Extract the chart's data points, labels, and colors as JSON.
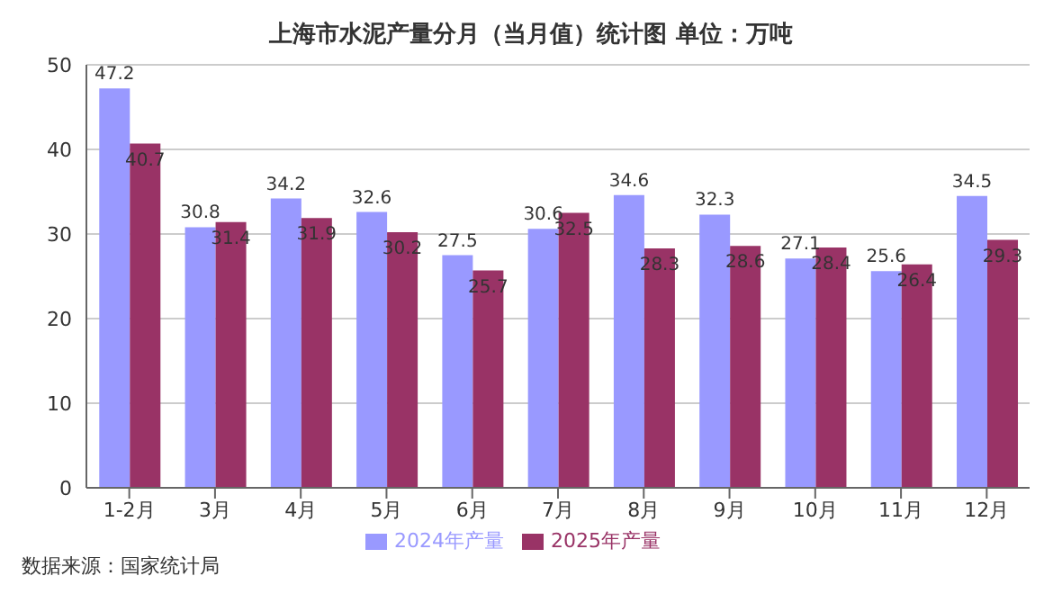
{
  "chart_data": {
    "type": "bar",
    "title": "上海市水泥产量分月（当月值）统计图 单位：万吨",
    "categories": [
      "1-2月",
      "3月",
      "4月",
      "5月",
      "6月",
      "7月",
      "8月",
      "9月",
      "10月",
      "11月",
      "12月"
    ],
    "series": [
      {
        "name": "2024年产量",
        "color": "#9999ff",
        "values": [
          47.2,
          30.8,
          34.2,
          32.6,
          27.5,
          30.6,
          34.6,
          32.3,
          27.1,
          25.6,
          34.5
        ]
      },
      {
        "name": "2025年产量",
        "color": "#993366",
        "values": [
          40.7,
          31.4,
          31.9,
          30.2,
          25.7,
          32.5,
          28.3,
          28.6,
          28.4,
          26.4,
          29.3
        ]
      }
    ],
    "ylim": [
      0,
      50
    ],
    "yticks": [
      0,
      10,
      20,
      30,
      40,
      50
    ],
    "grid": "y",
    "legend": "bottom",
    "data_labels": true,
    "annotations": [
      "数据来源：国家统计局"
    ]
  }
}
